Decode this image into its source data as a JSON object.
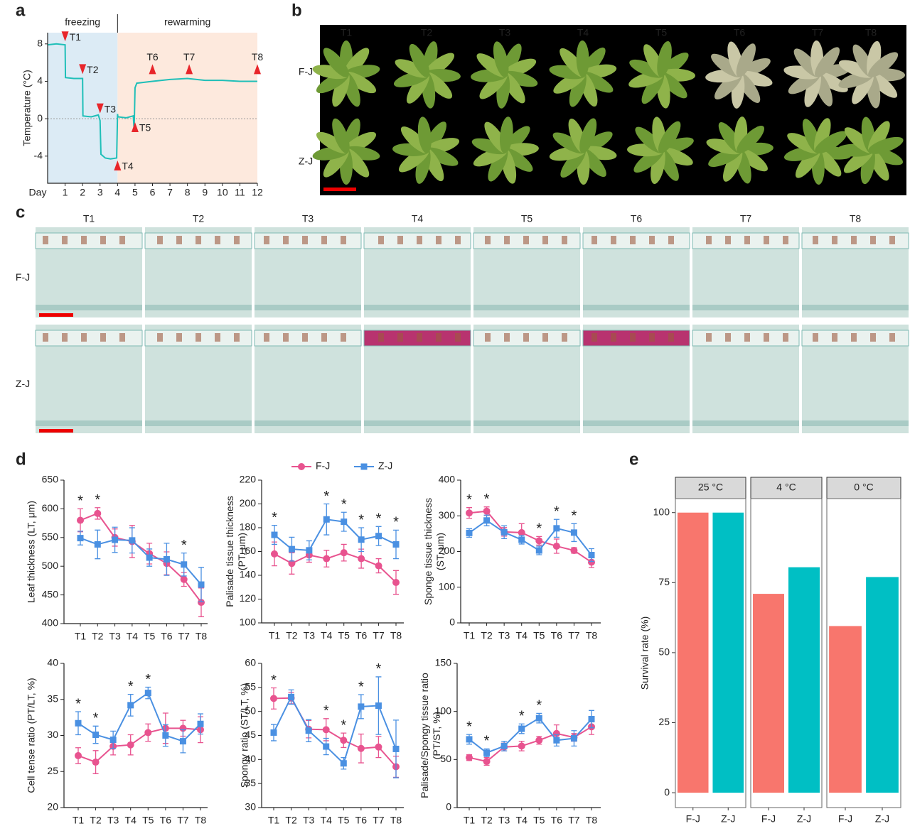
{
  "panel_labels": [
    "a",
    "b",
    "c",
    "d",
    "e"
  ],
  "photo_panels": [
    {
      "columns": [
        "T1",
        "T2",
        "T3",
        "T4",
        "T5",
        "T6",
        "T7",
        "T8"
      ],
      "rows": [
        "F-J",
        "Z-J"
      ]
    },
    {
      "columns": [
        "T1",
        "T2",
        "T3",
        "T4",
        "T5",
        "T6",
        "T7",
        "T8"
      ],
      "rows": [
        "F-J",
        "Z-J"
      ]
    }
  ],
  "chart_data": [
    {
      "type": "line",
      "xlabel": "Day",
      "ylabel": "Temperature (°C)",
      "color": "#1fbfb8",
      "x": [
        0,
        0.5,
        1,
        1.02,
        1.5,
        2,
        2.02,
        2.5,
        2.9,
        3,
        3.05,
        3.3,
        3.6,
        3.95,
        4,
        4.02,
        4.5,
        4.9,
        4.95,
        5,
        5.1,
        6,
        7,
        8,
        9,
        10,
        11,
        12
      ],
      "values": [
        7.9,
        8.0,
        7.9,
        4.4,
        4.3,
        4.3,
        0.3,
        0.2,
        0.4,
        -0.2,
        -3.8,
        -4.2,
        -4.3,
        -4.2,
        0.5,
        0.2,
        0.1,
        0.3,
        -1.2,
        3.3,
        3.8,
        4.0,
        4.2,
        4.3,
        4.1,
        4.1,
        4.0,
        4.0
      ],
      "xlim": [
        0,
        12
      ],
      "xticks": [
        1,
        2,
        3,
        4,
        5,
        6,
        7,
        8,
        9,
        10,
        11,
        12
      ],
      "ylim": [
        -6.9,
        9.2
      ],
      "yticks": [
        8,
        4,
        0,
        -4
      ],
      "zero_line": true,
      "regions": [
        {
          "label": "freezing",
          "from": 0,
          "to": 4,
          "color": "#dcebf5"
        },
        {
          "label": "rewarming",
          "from": 4,
          "to": 12,
          "color": "#fde9dd"
        }
      ],
      "annotations": [
        {
          "text": "T1",
          "x": 1,
          "y": 8.8,
          "dir": "down"
        },
        {
          "text": "T2",
          "x": 2,
          "y": 5.3,
          "dir": "down"
        },
        {
          "text": "T3",
          "x": 3,
          "y": 1.1,
          "dir": "down"
        },
        {
          "text": "T4",
          "x": 4,
          "y": -5.0,
          "dir": "up"
        },
        {
          "text": "T5",
          "x": 5,
          "y": -0.9,
          "dir": "up"
        },
        {
          "text": "T6",
          "x": 6,
          "y": 5.3,
          "dir": "up"
        },
        {
          "text": "T7",
          "x": 8.1,
          "y": 5.3,
          "dir": "up"
        },
        {
          "text": "T8",
          "x": 12,
          "y": 5.3,
          "dir": "up"
        }
      ]
    },
    {
      "type": "line",
      "ylabel": "Leaf thickness (LT, μm)",
      "categories": [
        "T1",
        "T2",
        "T3",
        "T4",
        "T5",
        "T6",
        "T7",
        "T8"
      ],
      "ylim": [
        400,
        650
      ],
      "yticks": [
        400,
        450,
        500,
        550,
        600,
        650
      ],
      "series": [
        {
          "color": "#e8538f",
          "marker": "circle",
          "values": [
            580,
            592,
            550,
            543,
            522,
            505,
            477,
            437
          ],
          "errors": [
            20,
            10,
            15,
            28,
            18,
            20,
            12,
            25
          ]
        },
        {
          "color": "#4a90e2",
          "marker": "square",
          "values": [
            549,
            538,
            546,
            545,
            515,
            512,
            503,
            468
          ],
          "errors": [
            12,
            25,
            22,
            22,
            15,
            28,
            20,
            30
          ]
        }
      ],
      "significance": [
        "*",
        "*",
        null,
        null,
        null,
        null,
        "*",
        null
      ]
    },
    {
      "type": "line",
      "ylabel": [
        "Palisade tissue thickness",
        "(PT, μm)"
      ],
      "categories": [
        "T1",
        "T2",
        "T3",
        "T4",
        "T5",
        "T6",
        "T7",
        "T8"
      ],
      "ylim": [
        100,
        220
      ],
      "yticks": [
        100,
        120,
        140,
        160,
        180,
        200,
        220
      ],
      "legend": "top",
      "series": [
        {
          "name": "F-J",
          "color": "#e8538f",
          "marker": "circle",
          "values": [
            158,
            150,
            157,
            154,
            159,
            154,
            148,
            134
          ],
          "errors": [
            10,
            9,
            6,
            7,
            7,
            8,
            6,
            10
          ]
        },
        {
          "name": "Z-J",
          "color": "#4a90e2",
          "marker": "square",
          "values": [
            174,
            162,
            161,
            187,
            185,
            170,
            173,
            166
          ],
          "errors": [
            8,
            10,
            8,
            13,
            8,
            10,
            8,
            12
          ]
        }
      ],
      "significance": [
        "*",
        null,
        null,
        "*",
        "*",
        "*",
        "*",
        "*"
      ]
    },
    {
      "type": "line",
      "ylabel": [
        "Sponge tissue thickness",
        "(ST, μm)"
      ],
      "categories": [
        "T1",
        "T2",
        "T3",
        "T4",
        "T5",
        "T6",
        "T7",
        "T8"
      ],
      "ylim": [
        0,
        400
      ],
      "yticks": [
        0,
        100,
        200,
        300,
        400
      ],
      "series": [
        {
          "color": "#e8538f",
          "marker": "circle",
          "values": [
            308,
            313,
            255,
            253,
            230,
            215,
            203,
            170
          ],
          "errors": [
            15,
            12,
            12,
            25,
            12,
            20,
            8,
            15
          ]
        },
        {
          "color": "#4a90e2",
          "marker": "square",
          "values": [
            252,
            287,
            254,
            233,
            203,
            265,
            253,
            190
          ],
          "errors": [
            12,
            15,
            18,
            12,
            12,
            25,
            25,
            18
          ]
        }
      ],
      "significance": [
        "*",
        "*",
        null,
        null,
        "*",
        "*",
        "*",
        null
      ]
    },
    {
      "type": "line",
      "ylabel": "Cell tense ratio (PT/LT, %)",
      "categories": [
        "T1",
        "T2",
        "T3",
        "T4",
        "T5",
        "T6",
        "T7",
        "T8"
      ],
      "ylim": [
        20,
        40
      ],
      "yticks": [
        20,
        25,
        30,
        35,
        40
      ],
      "series": [
        {
          "color": "#e8538f",
          "marker": "circle",
          "values": [
            27.2,
            26.3,
            28.5,
            28.7,
            30.4,
            31,
            31,
            30.8
          ],
          "errors": [
            1.1,
            1.6,
            1.2,
            1.4,
            1.2,
            2.1,
            1.1,
            1.8
          ]
        },
        {
          "color": "#4a90e2",
          "marker": "square",
          "values": [
            31.7,
            30.1,
            29.4,
            34.2,
            35.9,
            30,
            29.2,
            31.6
          ],
          "errors": [
            1.6,
            1.2,
            1.2,
            1.5,
            0.8,
            1.5,
            1.6,
            1.4
          ]
        }
      ],
      "significance": [
        "*",
        "*",
        null,
        "*",
        "*",
        null,
        null,
        null
      ]
    },
    {
      "type": "line",
      "ylabel": "Spongy ratio (ST/LT, %)",
      "categories": [
        "T1",
        "T2",
        "T3",
        "T4",
        "T5",
        "T6",
        "T7",
        "T8"
      ],
      "ylim": [
        30,
        60
      ],
      "yticks": [
        30,
        35,
        40,
        45,
        50,
        55,
        60
      ],
      "series": [
        {
          "color": "#e8538f",
          "marker": "circle",
          "values": [
            52.7,
            52.8,
            46.3,
            46.2,
            44,
            42.3,
            42.6,
            38.5
          ],
          "errors": [
            2.2,
            1.2,
            1.8,
            2.3,
            1.5,
            3,
            2.2,
            2.2
          ]
        },
        {
          "color": "#4a90e2",
          "marker": "square",
          "values": [
            45.6,
            53,
            46,
            42.7,
            39.2,
            51,
            51.2,
            42.2
          ],
          "errors": [
            1.7,
            1.5,
            2.3,
            1.7,
            1.2,
            2.5,
            6,
            6
          ]
        }
      ],
      "significance": [
        "*",
        null,
        null,
        "*",
        "*",
        "*",
        "*",
        null
      ]
    },
    {
      "type": "line",
      "ylabel": [
        "Palisade/Spongy tissue ratio",
        "(PT/ST, %)"
      ],
      "categories": [
        "T1",
        "T2",
        "T3",
        "T4",
        "T5",
        "T6",
        "T7",
        "T8"
      ],
      "ylim": [
        0,
        150
      ],
      "yticks": [
        0,
        50,
        100,
        150
      ],
      "series": [
        {
          "color": "#e8538f",
          "marker": "circle",
          "values": [
            52,
            48,
            63,
            64,
            70,
            77,
            73,
            84
          ],
          "errors": [
            3,
            4,
            4,
            5,
            4,
            9,
            4,
            8
          ]
        },
        {
          "color": "#4a90e2",
          "marker": "square",
          "values": [
            71,
            57,
            64,
            82,
            93,
            70,
            72,
            92
          ],
          "errors": [
            5,
            4,
            5,
            5,
            5,
            6,
            8,
            9
          ]
        }
      ],
      "significance": [
        "*",
        "*",
        null,
        "*",
        "*",
        null,
        null,
        null
      ]
    },
    {
      "type": "bar",
      "ylabel": "Survival rate (%)",
      "facets": [
        "25 °C",
        "4 °C",
        "0 °C"
      ],
      "categories": [
        "F-J",
        "Z-J"
      ],
      "colors": [
        "#f8766d",
        "#00bfc4"
      ],
      "values": [
        [
          100,
          100
        ],
        [
          71,
          80.5
        ],
        [
          59.5,
          77
        ]
      ],
      "ylim": [
        -5.3,
        105
      ],
      "yticks": [
        0,
        25,
        50,
        75,
        100
      ]
    }
  ]
}
